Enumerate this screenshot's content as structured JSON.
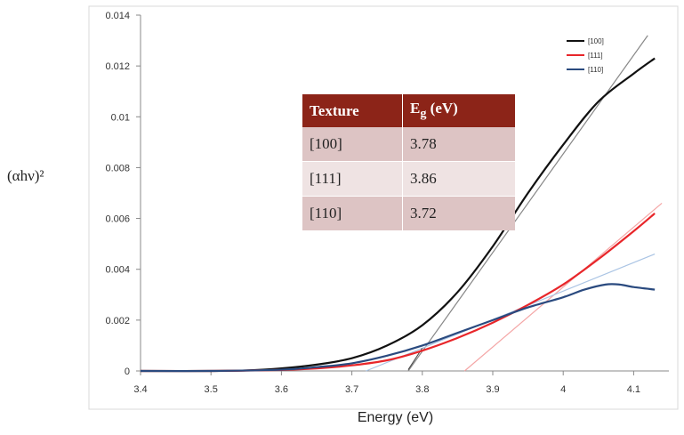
{
  "chart_data": {
    "type": "line",
    "xlabel": "Energy (eV)",
    "ylabel": "(αhν)²",
    "xlim": [
      3.4,
      4.15
    ],
    "ylim": [
      0,
      0.014
    ],
    "xticks": [
      "3.4",
      "3.5",
      "3.6",
      "3.7",
      "3.8",
      "3.9",
      "4",
      "4.1"
    ],
    "yticks": [
      "0",
      "0.002",
      "0.004",
      "0.006",
      "0.008",
      "0.01",
      "0.012",
      "0.014"
    ],
    "grid": false,
    "legend_position": "top-right",
    "series": [
      {
        "name": "[100]",
        "color": "#111111",
        "x": [
          3.4,
          3.5,
          3.55,
          3.6,
          3.65,
          3.7,
          3.75,
          3.8,
          3.85,
          3.9,
          3.95,
          4.0,
          4.05,
          4.1,
          4.13
        ],
        "y": [
          0,
          0,
          2e-05,
          0.0001,
          0.00025,
          0.0005,
          0.001,
          0.0018,
          0.0031,
          0.0049,
          0.007,
          0.0089,
          0.0106,
          0.0117,
          0.0123
        ]
      },
      {
        "name": "[111]",
        "color": "#e8262a",
        "x": [
          3.4,
          3.5,
          3.6,
          3.65,
          3.7,
          3.75,
          3.8,
          3.85,
          3.9,
          3.95,
          4.0,
          4.05,
          4.1,
          4.13
        ],
        "y": [
          0,
          0,
          4e-05,
          0.0001,
          0.00022,
          0.00042,
          0.0008,
          0.0013,
          0.0019,
          0.0026,
          0.0034,
          0.0044,
          0.0055,
          0.0062
        ]
      },
      {
        "name": "[110]",
        "color": "#2a4a7f",
        "x": [
          3.4,
          3.5,
          3.6,
          3.65,
          3.7,
          3.75,
          3.8,
          3.85,
          3.9,
          3.95,
          4.0,
          4.03,
          4.06,
          4.08,
          4.1,
          4.13
        ],
        "y": [
          0,
          0,
          5e-05,
          0.00015,
          0.0003,
          0.0006,
          0.001,
          0.0015,
          0.002,
          0.0025,
          0.0029,
          0.0032,
          0.0034,
          0.0034,
          0.0033,
          0.0032
        ]
      }
    ],
    "fit_lines": [
      {
        "series": "[100]",
        "color": "#888888",
        "x": [
          3.78,
          4.12
        ],
        "y": [
          0,
          0.0132
        ]
      },
      {
        "series": "[111]",
        "color": "#f4a6a6",
        "x": [
          3.86,
          4.14
        ],
        "y": [
          0,
          0.0066
        ]
      },
      {
        "series": "[110]",
        "color": "#aac4e4",
        "x": [
          3.72,
          4.13
        ],
        "y": [
          0,
          0.0046
        ]
      }
    ],
    "table": {
      "headers": [
        "Texture",
        "Eg (eV)"
      ],
      "rows": [
        [
          "[100]",
          "3.78"
        ],
        [
          "[111]",
          "3.86"
        ],
        [
          "[110]",
          "3.72"
        ]
      ]
    }
  }
}
